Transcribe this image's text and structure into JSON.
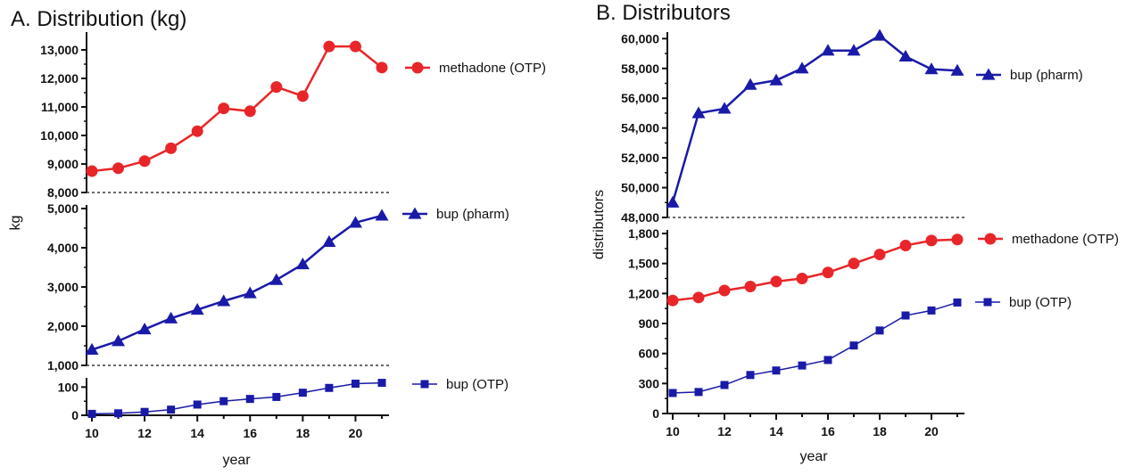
{
  "colors": {
    "red": "#e8262a",
    "blue": "#1a1aa8",
    "axis": "#111111"
  },
  "chart_data": [
    {
      "type": "line",
      "title": "A. Distribution (kg)",
      "xlabel": "year",
      "ylabel": "kg",
      "x": [
        10,
        11,
        12,
        13,
        14,
        15,
        16,
        17,
        18,
        19,
        20,
        21
      ],
      "x_ticks": [
        "10",
        "12",
        "14",
        "16",
        "18",
        "20"
      ],
      "xlim": [
        10,
        21
      ],
      "segments": [
        {
          "ylim": [
            8000,
            13500
          ],
          "ticks": [
            8000,
            9000,
            10000,
            11000,
            12000,
            13000
          ],
          "tick_labels": [
            "8,000",
            "9,000",
            "10,000",
            "11,000",
            "12,000",
            "13,000"
          ],
          "series": [
            {
              "name": "methadone (OTP)",
              "marker": "circle",
              "color": "red",
              "values": [
                8750,
                8850,
                9100,
                9550,
                10150,
                10950,
                10850,
                11700,
                11380,
                13120,
                13120,
                12380
              ]
            }
          ]
        },
        {
          "ylim": [
            1000,
            5000
          ],
          "ticks": [
            1000,
            2000,
            3000,
            4000,
            5000
          ],
          "tick_labels": [
            "1,000",
            "2,000",
            "3,000",
            "4,000",
            "5,000"
          ],
          "series": [
            {
              "name": "bup (pharm)",
              "marker": "triangle",
              "color": "blue",
              "values": [
                1400,
                1620,
                1920,
                2200,
                2420,
                2640,
                2840,
                3180,
                3580,
                4150,
                4640,
                4820
              ]
            }
          ]
        },
        {
          "ylim": [
            0,
            120
          ],
          "ticks": [
            0,
            100
          ],
          "tick_labels": [
            "0",
            "100"
          ],
          "series": [
            {
              "name": "bup (OTP)",
              "marker": "square",
              "color": "blue",
              "values": [
                5,
                7,
                12,
                20,
                38,
                50,
                58,
                65,
                80,
                97,
                112,
                115
              ]
            }
          ]
        }
      ]
    },
    {
      "type": "line",
      "title": "B. Distributors",
      "xlabel": "year",
      "ylabel": "distributors",
      "x": [
        10,
        11,
        12,
        13,
        14,
        15,
        16,
        17,
        18,
        19,
        20,
        21
      ],
      "x_ticks": [
        "10",
        "12",
        "14",
        "16",
        "18",
        "20"
      ],
      "xlim": [
        10,
        21
      ],
      "segments": [
        {
          "ylim": [
            48000,
            60200
          ],
          "ticks": [
            48000,
            50000,
            52000,
            54000,
            56000,
            58000,
            60000
          ],
          "tick_labels": [
            "48,000",
            "50,000",
            "52,000",
            "54,000",
            "56,000",
            "58,000",
            "60,000"
          ],
          "series": [
            {
              "name": "bup (pharm)",
              "marker": "triangle",
              "color": "blue",
              "values": [
                49000,
                55000,
                55300,
                56900,
                57200,
                58000,
                59200,
                59200,
                60200,
                58800,
                57950,
                57850
              ]
            }
          ]
        },
        {
          "ylim": [
            0,
            1800
          ],
          "ticks": [
            0,
            300,
            600,
            900,
            1200,
            1500,
            1800
          ],
          "tick_labels": [
            "0",
            "300",
            "600",
            "900",
            "1,200",
            "1,500",
            "1,800"
          ],
          "series": [
            {
              "name": "methadone (OTP)",
              "marker": "circle",
              "color": "red",
              "values": [
                1130,
                1160,
                1230,
                1270,
                1320,
                1350,
                1410,
                1500,
                1590,
                1680,
                1730,
                1740
              ]
            },
            {
              "name": "bup (OTP)",
              "marker": "square",
              "color": "blue",
              "values": [
                205,
                215,
                285,
                385,
                430,
                480,
                535,
                680,
                830,
                980,
                1030,
                1110
              ]
            }
          ]
        }
      ]
    }
  ]
}
